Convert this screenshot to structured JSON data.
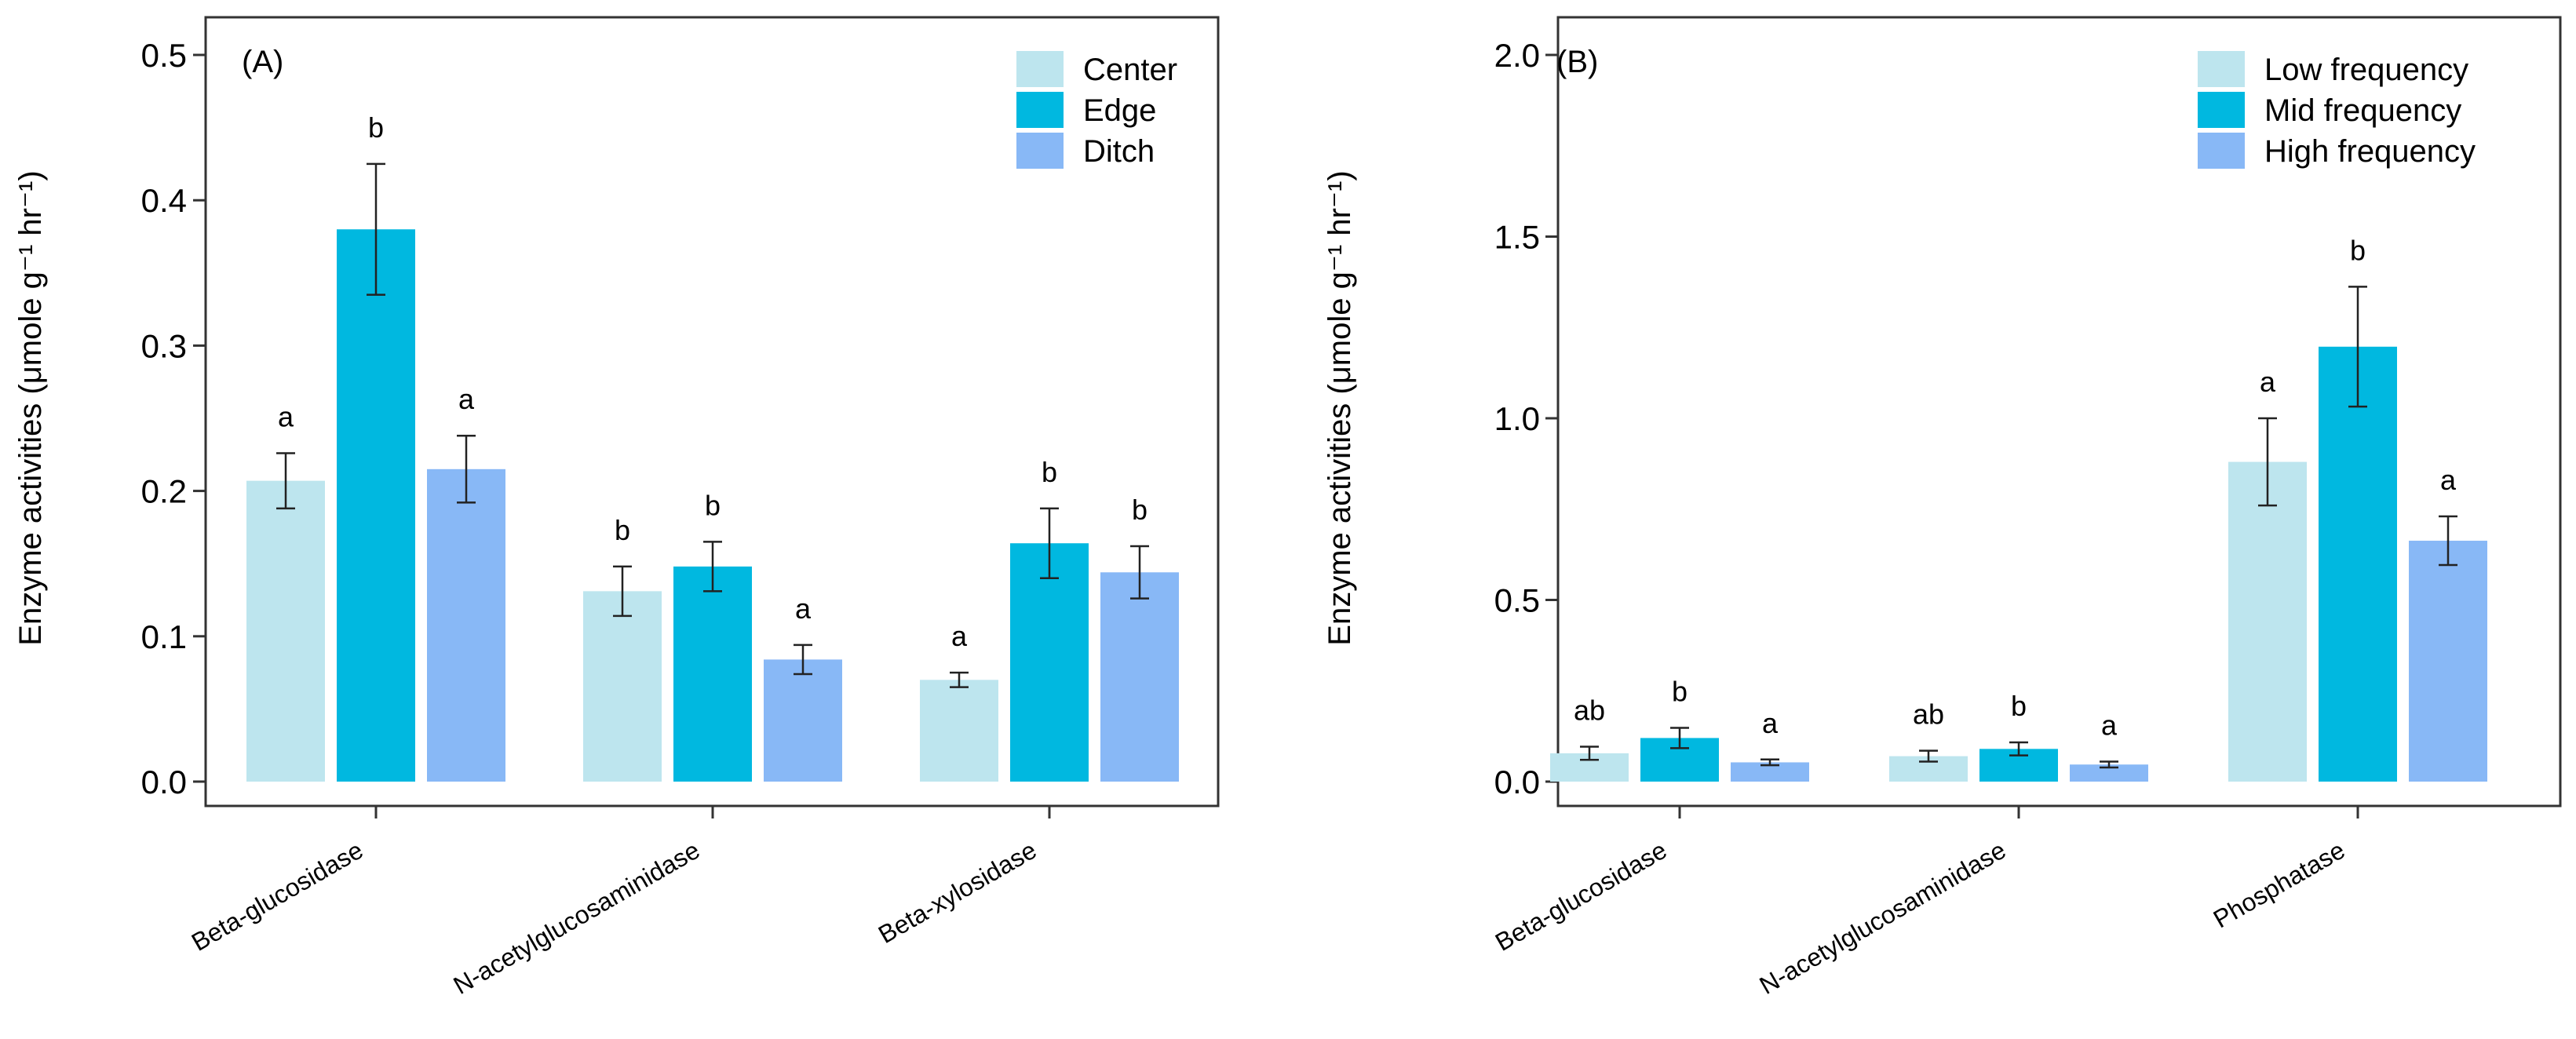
{
  "chart_data": [
    {
      "type": "bar",
      "panel": "(A)",
      "categories": [
        "Beta-glucosidase",
        "N-acetylglucosaminidase",
        "Beta-xylosidase"
      ],
      "series": [
        {
          "name": "Center",
          "color": "#bde5ee",
          "values": [
            0.207,
            0.131,
            0.07
          ],
          "err": [
            0.019,
            0.017,
            0.005
          ],
          "labels": [
            "a",
            "b",
            "a"
          ]
        },
        {
          "name": "Edge",
          "color": "#00b8e0",
          "values": [
            0.38,
            0.148,
            0.164
          ],
          "err": [
            0.045,
            0.017,
            0.024
          ],
          "labels": [
            "b",
            "b",
            "b"
          ]
        },
        {
          "name": "Ditch",
          "color": "#88b8f6",
          "values": [
            0.215,
            0.084,
            0.144
          ],
          "err": [
            0.023,
            0.01,
            0.018
          ],
          "labels": [
            "a",
            "a",
            "b"
          ]
        }
      ],
      "ylim": [
        0,
        0.5
      ],
      "yticks": [
        0.0,
        0.1,
        0.2,
        0.3,
        0.4,
        0.5
      ],
      "ytick_labels": [
        "0.0",
        "0.1",
        "0.2",
        "0.3",
        "0.4",
        "0.5"
      ],
      "ylabel": "Enzyme activities (μmole g⁻¹ hr⁻¹)",
      "xlabel": "",
      "legend": "top-right",
      "grid": false
    },
    {
      "type": "bar",
      "panel": "(B)",
      "categories": [
        "Beta-glucosidase",
        "N-acetylglucosaminidase",
        "Phosphatase"
      ],
      "series": [
        {
          "name": "Low frequency",
          "color": "#bde5ee",
          "values": [
            0.078,
            0.07,
            0.88
          ],
          "err": [
            0.018,
            0.015,
            0.12
          ],
          "labels": [
            "ab",
            "ab",
            "a"
          ]
        },
        {
          "name": "Mid frequency",
          "color": "#00b8e0",
          "values": [
            0.12,
            0.09,
            1.197
          ],
          "err": [
            0.028,
            0.018,
            0.165
          ],
          "labels": [
            "b",
            "b",
            "b"
          ]
        },
        {
          "name": "High frequency",
          "color": "#88b8f6",
          "values": [
            0.053,
            0.047,
            0.663
          ],
          "err": [
            0.008,
            0.008,
            0.067
          ],
          "labels": [
            "a",
            "a",
            "a"
          ]
        }
      ],
      "ylim": [
        0,
        2.0
      ],
      "yticks": [
        0.0,
        0.5,
        1.0,
        1.5,
        2.0
      ],
      "ytick_labels": [
        "0.0",
        "0.5",
        "1.0",
        "1.5",
        "2.0"
      ],
      "ylabel": "Enzyme activities (μmole g⁻¹ hr⁻¹)",
      "xlabel": "",
      "legend": "top-right",
      "grid": false
    }
  ]
}
